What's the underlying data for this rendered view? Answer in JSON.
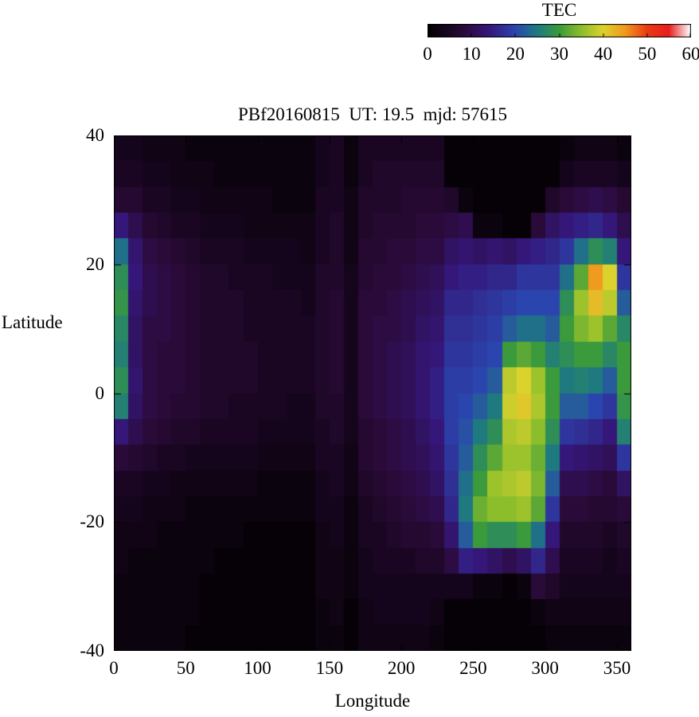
{
  "colors": {
    "background": "#ffffff",
    "text": "#000000",
    "frame": "#000000"
  },
  "chart_data": {
    "type": "heatmap",
    "title": "PBf20160815  UT: 19.5  mjd: 57615",
    "xlabel": "Longitude",
    "ylabel": "Latitude",
    "x_range": [
      0,
      360
    ],
    "y_range": [
      -40,
      40
    ],
    "x_ticks": [
      0,
      50,
      100,
      150,
      200,
      250,
      300,
      350
    ],
    "y_ticks": [
      40,
      20,
      0,
      -20,
      -40
    ],
    "grid": {
      "lon_start": 0,
      "lon_step": 10,
      "cols": 36,
      "lat_top": 40,
      "lat_step": 4,
      "rows": 20,
      "rows_order": "top-to-bottom (lat 40 down to -40)"
    },
    "colorbar": {
      "label": "TEC",
      "range": [
        0,
        60
      ],
      "ticks": [
        0,
        10,
        20,
        30,
        40,
        50,
        60
      ],
      "position": "top-right",
      "palette_stops": [
        [
          0,
          "#000000"
        ],
        [
          8,
          "#2a0a38"
        ],
        [
          14,
          "#35177a"
        ],
        [
          20,
          "#2a46ae"
        ],
        [
          25,
          "#1f7a80"
        ],
        [
          30,
          "#3a9a3c"
        ],
        [
          35,
          "#8cbe2c"
        ],
        [
          40,
          "#dcd22e"
        ],
        [
          45,
          "#f09a1e"
        ],
        [
          50,
          "#ea3c14"
        ],
        [
          55,
          "#e61e1e"
        ],
        [
          60,
          "#ffffff"
        ]
      ]
    },
    "values": [
      [
        4,
        4,
        3,
        3,
        3,
        2,
        2,
        2,
        2,
        2,
        2,
        2,
        2,
        2,
        4,
        5,
        2,
        5,
        5,
        5,
        5,
        5,
        5,
        1,
        1,
        1,
        1,
        1,
        1,
        1,
        1,
        2,
        3,
        3,
        3,
        2
      ],
      [
        5,
        5,
        4,
        4,
        3,
        3,
        3,
        2,
        2,
        2,
        2,
        2,
        2,
        2,
        4,
        5,
        2,
        5,
        6,
        6,
        6,
        6,
        6,
        1,
        1,
        1,
        1,
        1,
        1,
        1,
        1,
        4,
        5,
        5,
        5,
        4
      ],
      [
        7,
        7,
        5,
        5,
        4,
        4,
        3,
        3,
        3,
        3,
        3,
        2,
        2,
        2,
        5,
        5,
        3,
        6,
        6,
        6,
        7,
        7,
        7,
        6,
        2,
        1,
        1,
        1,
        1,
        1,
        6,
        8,
        9,
        10,
        9,
        7
      ],
      [
        14,
        10,
        7,
        6,
        5,
        5,
        4,
        4,
        4,
        3,
        3,
        3,
        3,
        3,
        5,
        6,
        3,
        6,
        7,
        7,
        7,
        8,
        8,
        9,
        10,
        2,
        2,
        1,
        1,
        8,
        12,
        14,
        15,
        16,
        14,
        10
      ],
      [
        24,
        13,
        9,
        8,
        7,
        6,
        5,
        5,
        5,
        4,
        4,
        4,
        4,
        3,
        5,
        6,
        3,
        7,
        7,
        8,
        8,
        9,
        9,
        12,
        13,
        12,
        13,
        12,
        14,
        15,
        16,
        18,
        24,
        28,
        26,
        14
      ],
      [
        28,
        14,
        10,
        9,
        8,
        7,
        6,
        6,
        5,
        5,
        5,
        4,
        4,
        4,
        6,
        6,
        4,
        7,
        8,
        8,
        9,
        10,
        11,
        14,
        15,
        15,
        16,
        16,
        18,
        18,
        18,
        24,
        32,
        45,
        40,
        18
      ],
      [
        29,
        13,
        10,
        9,
        8,
        7,
        6,
        6,
        6,
        5,
        5,
        5,
        5,
        4,
        6,
        7,
        4,
        8,
        8,
        9,
        10,
        11,
        12,
        16,
        16,
        17,
        18,
        19,
        20,
        20,
        20,
        28,
        36,
        42,
        38,
        22
      ],
      [
        27,
        12,
        9,
        9,
        8,
        7,
        6,
        6,
        6,
        5,
        5,
        5,
        5,
        5,
        6,
        7,
        4,
        8,
        9,
        9,
        10,
        12,
        13,
        17,
        17,
        18,
        19,
        22,
        24,
        24,
        22,
        30,
        34,
        36,
        32,
        27
      ],
      [
        26,
        12,
        9,
        8,
        8,
        7,
        6,
        6,
        6,
        6,
        5,
        5,
        5,
        5,
        6,
        7,
        4,
        8,
        9,
        10,
        11,
        13,
        14,
        18,
        18,
        19,
        20,
        30,
        32,
        30,
        26,
        28,
        30,
        30,
        27,
        30
      ],
      [
        28,
        13,
        9,
        8,
        8,
        7,
        6,
        6,
        6,
        6,
        5,
        5,
        5,
        5,
        6,
        7,
        4,
        8,
        9,
        10,
        11,
        13,
        15,
        19,
        19,
        20,
        22,
        38,
        40,
        36,
        30,
        25,
        26,
        25,
        22,
        30
      ],
      [
        26,
        12,
        9,
        8,
        7,
        7,
        6,
        6,
        5,
        5,
        5,
        5,
        4,
        4,
        6,
        6,
        4,
        8,
        9,
        10,
        11,
        13,
        15,
        19,
        20,
        22,
        25,
        39,
        41,
        37,
        30,
        22,
        22,
        20,
        18,
        29
      ],
      [
        14,
        10,
        8,
        7,
        6,
        6,
        5,
        5,
        5,
        5,
        4,
        4,
        4,
        4,
        5,
        6,
        4,
        7,
        8,
        9,
        10,
        12,
        14,
        19,
        21,
        25,
        28,
        37,
        38,
        35,
        28,
        18,
        17,
        16,
        14,
        26
      ],
      [
        8,
        7,
        6,
        5,
        5,
        4,
        4,
        4,
        4,
        4,
        3,
        3,
        3,
        3,
        5,
        5,
        3,
        7,
        8,
        9,
        10,
        11,
        13,
        18,
        22,
        28,
        32,
        36,
        36,
        33,
        25,
        14,
        13,
        12,
        11,
        18
      ],
      [
        5,
        5,
        4,
        4,
        3,
        3,
        3,
        3,
        3,
        3,
        2,
        2,
        2,
        2,
        4,
        5,
        3,
        6,
        7,
        8,
        9,
        10,
        12,
        17,
        24,
        30,
        36,
        37,
        38,
        34,
        22,
        10,
        10,
        9,
        8,
        12
      ],
      [
        4,
        4,
        3,
        3,
        3,
        2,
        2,
        2,
        2,
        2,
        2,
        2,
        2,
        2,
        4,
        4,
        2,
        5,
        6,
        7,
        8,
        9,
        10,
        16,
        25,
        33,
        35,
        35,
        36,
        32,
        18,
        8,
        8,
        7,
        7,
        8
      ],
      [
        3,
        3,
        3,
        2,
        2,
        2,
        2,
        2,
        2,
        1,
        1,
        1,
        1,
        1,
        3,
        4,
        2,
        5,
        5,
        6,
        7,
        7,
        8,
        13,
        22,
        30,
        28,
        28,
        30,
        24,
        14,
        6,
        6,
        6,
        5,
        6
      ],
      [
        3,
        2,
        2,
        2,
        2,
        2,
        2,
        1,
        1,
        1,
        1,
        1,
        1,
        1,
        3,
        3,
        2,
        4,
        5,
        5,
        5,
        6,
        6,
        9,
        15,
        14,
        12,
        10,
        12,
        16,
        10,
        5,
        5,
        5,
        4,
        5
      ],
      [
        2,
        2,
        2,
        2,
        2,
        2,
        1,
        1,
        1,
        1,
        1,
        1,
        1,
        1,
        3,
        3,
        2,
        4,
        4,
        4,
        4,
        4,
        4,
        4,
        4,
        2,
        2,
        1,
        2,
        8,
        6,
        4,
        4,
        4,
        4,
        4
      ],
      [
        2,
        2,
        2,
        2,
        2,
        2,
        1,
        1,
        1,
        1,
        1,
        1,
        1,
        1,
        2,
        3,
        1,
        3,
        4,
        4,
        4,
        4,
        3,
        1,
        1,
        1,
        1,
        1,
        1,
        2,
        3,
        3,
        3,
        3,
        3,
        3
      ],
      [
        2,
        2,
        2,
        2,
        2,
        1,
        1,
        1,
        1,
        1,
        1,
        1,
        1,
        1,
        2,
        2,
        1,
        3,
        3,
        3,
        3,
        3,
        2,
        1,
        1,
        1,
        1,
        1,
        1,
        1,
        2,
        2,
        2,
        2,
        2,
        2
      ]
    ]
  }
}
